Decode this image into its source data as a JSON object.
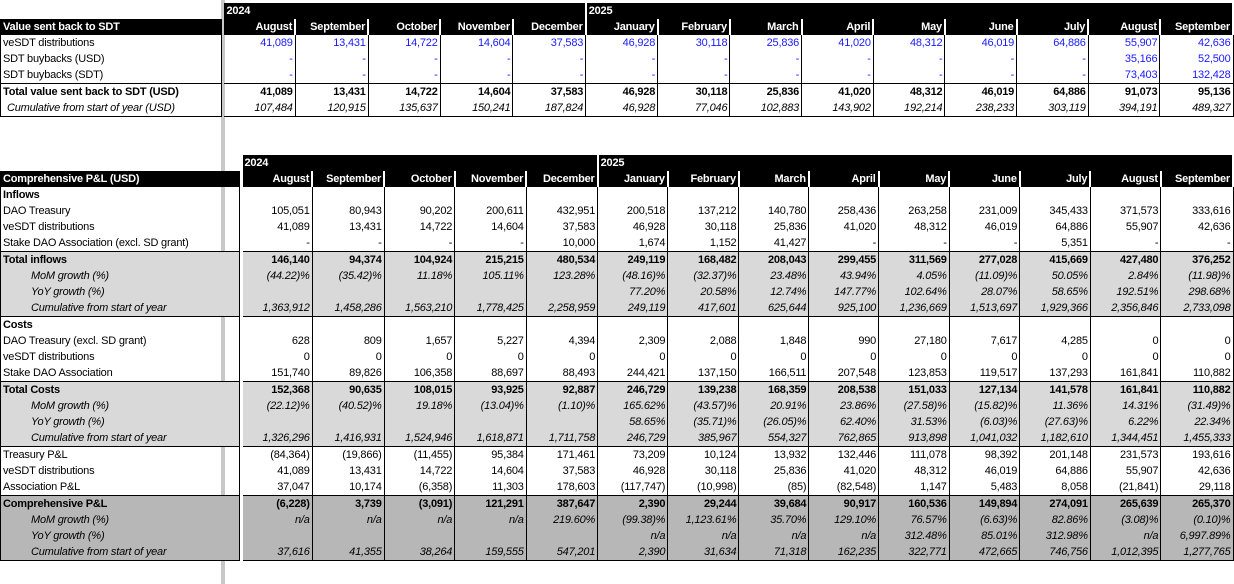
{
  "years": {
    "y2024": "2024",
    "y2025": "2025"
  },
  "months": [
    "August",
    "September",
    "October",
    "November",
    "December",
    "January",
    "February",
    "March",
    "April",
    "May",
    "June",
    "July",
    "August",
    "September"
  ],
  "colors": {
    "header_bg": "#000000",
    "input_blue": "#1a1aff",
    "shade_light": "#d9d9d9",
    "shade_dark": "#b7b7b7"
  },
  "value_table": {
    "title": "Value sent back to SDT",
    "rows": [
      {
        "label": "veSDT distributions",
        "type": "blue",
        "values": [
          "41,089",
          "13,431",
          "14,722",
          "14,604",
          "37,583",
          "46,928",
          "30,118",
          "25,836",
          "41,020",
          "48,312",
          "46,019",
          "64,886",
          "55,907",
          "42,636"
        ]
      },
      {
        "label": "SDT buybacks (USD)",
        "type": "blue",
        "values": [
          "-",
          "-",
          "-",
          "-",
          "-",
          "-",
          "-",
          "-",
          "-",
          "-",
          "-",
          "-",
          "35,166",
          "52,500"
        ]
      },
      {
        "label": "SDT buybacks (SDT)",
        "type": "blue",
        "values": [
          "-",
          "-",
          "-",
          "-",
          "-",
          "-",
          "-",
          "-",
          "-",
          "-",
          "-",
          "-",
          "73,403",
          "132,428"
        ]
      },
      {
        "label": "Total value sent back to SDT (USD)",
        "type": "b top",
        "values": [
          "41,089",
          "13,431",
          "14,722",
          "14,604",
          "37,583",
          "46,928",
          "30,118",
          "25,836",
          "41,020",
          "48,312",
          "46,019",
          "64,886",
          "91,073",
          "95,136"
        ]
      },
      {
        "label": "Cumulative from start of year (USD)",
        "type": "i last",
        "values": [
          "107,484",
          "120,915",
          "135,637",
          "150,241",
          "187,824",
          "46,928",
          "77,046",
          "102,883",
          "143,902",
          "192,214",
          "238,233",
          "303,119",
          "394,191",
          "489,327"
        ]
      }
    ]
  },
  "pnl_table": {
    "title": "Comprehensive P&L (USD)",
    "rows": [
      {
        "label": "Inflows",
        "type": "b",
        "values": [
          "",
          "",
          "",
          "",
          "",
          "",
          "",
          "",
          "",
          "",
          "",
          "",
          "",
          ""
        ]
      },
      {
        "label": "DAO Treasury",
        "type": "",
        "values": [
          "105,051",
          "80,943",
          "90,202",
          "200,611",
          "432,951",
          "200,518",
          "137,212",
          "140,780",
          "258,436",
          "263,258",
          "231,009",
          "345,433",
          "371,573",
          "333,616"
        ]
      },
      {
        "label": "veSDT distributions",
        "type": "",
        "values": [
          "41,089",
          "13,431",
          "14,722",
          "14,604",
          "37,583",
          "46,928",
          "30,118",
          "25,836",
          "41,020",
          "48,312",
          "46,019",
          "64,886",
          "55,907",
          "42,636"
        ]
      },
      {
        "label": "Stake DAO Association (excl. SD grant)",
        "type": "",
        "values": [
          "-",
          "-",
          "-",
          "-",
          "10,000",
          "1,674",
          "1,152",
          "41,427",
          "-",
          "-",
          "-",
          "5,351",
          "-",
          "-"
        ]
      },
      {
        "label": "Total inflows",
        "type": "b s1 top",
        "values": [
          "146,140",
          "94,374",
          "104,924",
          "215,215",
          "480,534",
          "249,119",
          "168,482",
          "208,043",
          "299,455",
          "311,569",
          "277,028",
          "415,669",
          "427,480",
          "376,252"
        ]
      },
      {
        "label": "MoM growth (%)",
        "type": "i ind s1",
        "values": [
          "(44.22)%",
          "(35.42)%",
          "11.18%",
          "105.11%",
          "123.28%",
          "(48.16)%",
          "(32.37)%",
          "23.48%",
          "43.94%",
          "4.05%",
          "(11.09)%",
          "50.05%",
          "2.84%",
          "(11.98)%"
        ]
      },
      {
        "label": "YoY growth (%)",
        "type": "i ind s1",
        "values": [
          "",
          "",
          "",
          "",
          "",
          "77.20%",
          "20.58%",
          "12.74%",
          "147.77%",
          "102.64%",
          "28.07%",
          "58.65%",
          "192.51%",
          "298.68%"
        ]
      },
      {
        "label": "Cumulative from start of year",
        "type": "i ind s1",
        "values": [
          "1,363,912",
          "1,458,286",
          "1,563,210",
          "1,778,425",
          "2,258,959",
          "249,119",
          "417,601",
          "625,644",
          "925,100",
          "1,236,669",
          "1,513,697",
          "1,929,366",
          "2,356,846",
          "2,733,098"
        ]
      },
      {
        "label": "Costs",
        "type": "b top",
        "values": [
          "",
          "",
          "",
          "",
          "",
          "",
          "",
          "",
          "",
          "",
          "",
          "",
          "",
          ""
        ]
      },
      {
        "label": "DAO Treasury (excl. SD grant)",
        "type": "",
        "values": [
          "628",
          "809",
          "1,657",
          "5,227",
          "4,394",
          "2,309",
          "2,088",
          "1,848",
          "990",
          "27,180",
          "7,617",
          "4,285",
          "0",
          "0"
        ]
      },
      {
        "label": "veSDT distributions",
        "type": "",
        "values": [
          "0",
          "0",
          "0",
          "0",
          "0",
          "0",
          "0",
          "0",
          "0",
          "0",
          "0",
          "0",
          "0",
          "0"
        ]
      },
      {
        "label": "Stake DAO Association",
        "type": "",
        "values": [
          "151,740",
          "89,826",
          "106,358",
          "88,697",
          "88,493",
          "244,421",
          "137,150",
          "166,511",
          "207,548",
          "123,853",
          "119,517",
          "137,293",
          "161,841",
          "110,882"
        ]
      },
      {
        "label": "Total Costs",
        "type": "b s1 top",
        "values": [
          "152,368",
          "90,635",
          "108,015",
          "93,925",
          "92,887",
          "246,729",
          "139,238",
          "168,359",
          "208,538",
          "151,033",
          "127,134",
          "141,578",
          "161,841",
          "110,882"
        ]
      },
      {
        "label": "MoM growth (%)",
        "type": "i ind s1",
        "values": [
          "(22.12)%",
          "(40.52)%",
          "19.18%",
          "(13.04)%",
          "(1.10)%",
          "165.62%",
          "(43.57)%",
          "20.91%",
          "23.86%",
          "(27.58)%",
          "(15.82)%",
          "11.36%",
          "14.31%",
          "(31.49)%"
        ]
      },
      {
        "label": "YoY growth (%)",
        "type": "i ind s1",
        "values": [
          "",
          "",
          "",
          "",
          "",
          "58.65%",
          "(35.71)%",
          "(26.05)%",
          "62.40%",
          "31.53%",
          "(6.03)%",
          "(27.63)%",
          "6.22%",
          "22.34%"
        ]
      },
      {
        "label": "Cumulative from start of year",
        "type": "i ind s1",
        "values": [
          "1,326,296",
          "1,416,931",
          "1,524,946",
          "1,618,871",
          "1,711,758",
          "246,729",
          "385,967",
          "554,327",
          "762,865",
          "913,898",
          "1,041,032",
          "1,182,610",
          "1,344,451",
          "1,455,333"
        ]
      },
      {
        "label": "Treasury P&L",
        "type": "top",
        "values": [
          "(84,364)",
          "(19,866)",
          "(11,455)",
          "95,384",
          "171,461",
          "73,209",
          "10,124",
          "13,932",
          "132,446",
          "111,078",
          "98,392",
          "201,148",
          "231,573",
          "193,616"
        ]
      },
      {
        "label": "veSDT distributions",
        "type": "",
        "values": [
          "41,089",
          "13,431",
          "14,722",
          "14,604",
          "37,583",
          "46,928",
          "30,118",
          "25,836",
          "41,020",
          "48,312",
          "46,019",
          "64,886",
          "55,907",
          "42,636"
        ]
      },
      {
        "label": "Association P&L",
        "type": "",
        "values": [
          "37,047",
          "10,174",
          "(6,358)",
          "11,303",
          "178,603",
          "(117,747)",
          "(10,998)",
          "(85)",
          "(82,548)",
          "1,147",
          "5,483",
          "8,058",
          "(21,841)",
          "29,118"
        ]
      },
      {
        "label": "Comprehensive P&L",
        "type": "b s2 top",
        "values": [
          "(6,228)",
          "3,739",
          "(3,091)",
          "121,291",
          "387,647",
          "2,390",
          "29,244",
          "39,684",
          "90,917",
          "160,536",
          "149,894",
          "274,091",
          "265,639",
          "265,370"
        ]
      },
      {
        "label": "MoM growth (%)",
        "type": "i ind s2",
        "values": [
          "n/a",
          "n/a",
          "n/a",
          "n/a",
          "219.60%",
          "(99.38)%",
          "1,123.61%",
          "35.70%",
          "129.10%",
          "76.57%",
          "(6.63)%",
          "82.86%",
          "(3.08)%",
          "(0.10)%"
        ]
      },
      {
        "label": "YoY growth (%)",
        "type": "i ind s2",
        "values": [
          "",
          "",
          "",
          "",
          "",
          "n/a",
          "n/a",
          "n/a",
          "n/a",
          "312.48%",
          "85.01%",
          "312.98%",
          "n/a",
          "6,997.89%"
        ]
      },
      {
        "label": "Cumulative from start of year",
        "type": "i ind s2 last",
        "values": [
          "37,616",
          "41,355",
          "38,264",
          "159,555",
          "547,201",
          "2,390",
          "31,634",
          "71,318",
          "162,235",
          "322,771",
          "472,665",
          "746,756",
          "1,012,395",
          "1,277,765"
        ]
      }
    ]
  }
}
